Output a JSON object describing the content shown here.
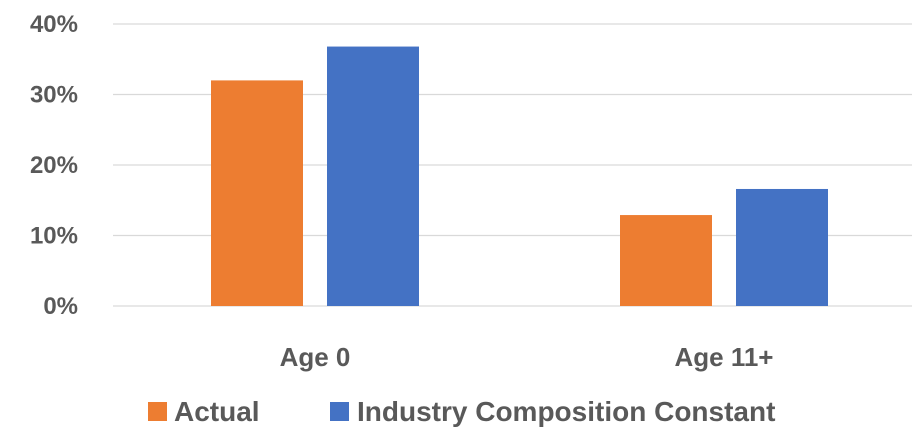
{
  "chart_data": {
    "type": "bar",
    "title": "",
    "xlabel": "",
    "ylabel": "",
    "categories": [
      "Age 0",
      "Age 11+"
    ],
    "series": [
      {
        "name": "Actual",
        "color": "#ED7D31",
        "values": [
          32,
          12.9
        ]
      },
      {
        "name": "Industry Composition Constant",
        "color": "#4472C4",
        "values": [
          36.8,
          16.6
        ]
      }
    ],
    "ylim": [
      0,
      40
    ],
    "yticks": [
      "0%",
      "10%",
      "20%",
      "30%",
      "40%"
    ],
    "ytick_values": [
      0,
      10,
      20,
      30,
      40
    ],
    "grid": true,
    "legend_position": "bottom"
  }
}
